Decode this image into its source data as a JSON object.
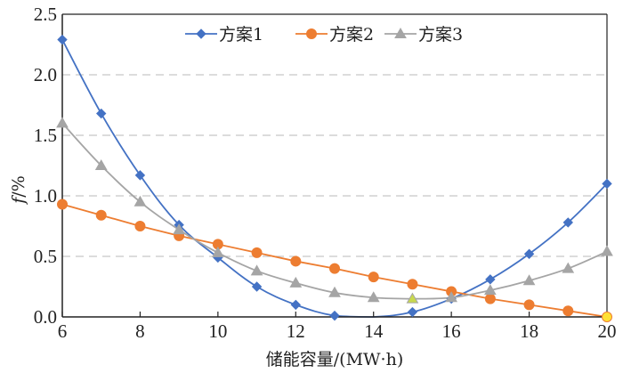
{
  "chart_data": {
    "type": "line",
    "title": "",
    "xlabel": "储能容量/(MW·h)",
    "ylabel_italic": "f",
    "ylabel_suffix": "/%",
    "xlim": [
      6,
      20
    ],
    "ylim": [
      0,
      2.5
    ],
    "xticks": [
      6,
      8,
      10,
      12,
      14,
      16,
      18,
      20
    ],
    "xtick_labels": [
      "6",
      "8",
      "10",
      "12",
      "14",
      "16",
      "18",
      "20"
    ],
    "yticks": [
      0,
      0.5,
      1.0,
      1.5,
      2.0,
      2.5
    ],
    "ytick_labels": [
      "0.0",
      "0.5",
      "1.0",
      "1.5",
      "2.0",
      "2.5"
    ],
    "grid": "horizontal-dashed",
    "legend_position": "top-center",
    "x": [
      6,
      7,
      8,
      9,
      10,
      11,
      12,
      13,
      14,
      15,
      16,
      17,
      18,
      19,
      20
    ],
    "series": [
      {
        "name": "方案1",
        "color": "#4472C4",
        "marker": "diamond",
        "values": [
          2.29,
          1.68,
          1.17,
          0.76,
          0.49,
          0.25,
          0.1,
          0.01,
          0.0,
          0.04,
          0.15,
          0.31,
          0.52,
          0.78,
          1.1
        ]
      },
      {
        "name": "方案2",
        "color": "#ED7D31",
        "marker": "circle",
        "values": [
          0.93,
          0.84,
          0.75,
          0.67,
          0.6,
          0.53,
          0.46,
          0.4,
          0.33,
          0.27,
          0.21,
          0.15,
          0.1,
          0.05,
          0.0
        ]
      },
      {
        "name": "方案3",
        "color": "#A5A5A5",
        "marker": "triangle",
        "values": [
          1.6,
          1.25,
          0.95,
          0.72,
          0.53,
          0.38,
          0.28,
          0.2,
          0.16,
          0.15,
          0.16,
          0.22,
          0.3,
          0.4,
          0.54
        ]
      }
    ],
    "highlighted_points": [
      {
        "series": "方案3",
        "x": 15,
        "value": 0.15,
        "fill": "#C9D94E"
      },
      {
        "series": "方案2",
        "x": 20,
        "value": 0.0,
        "fill": "#FFE033"
      }
    ],
    "hidden_points": [
      {
        "series": "方案1",
        "x": 14
      }
    ]
  }
}
